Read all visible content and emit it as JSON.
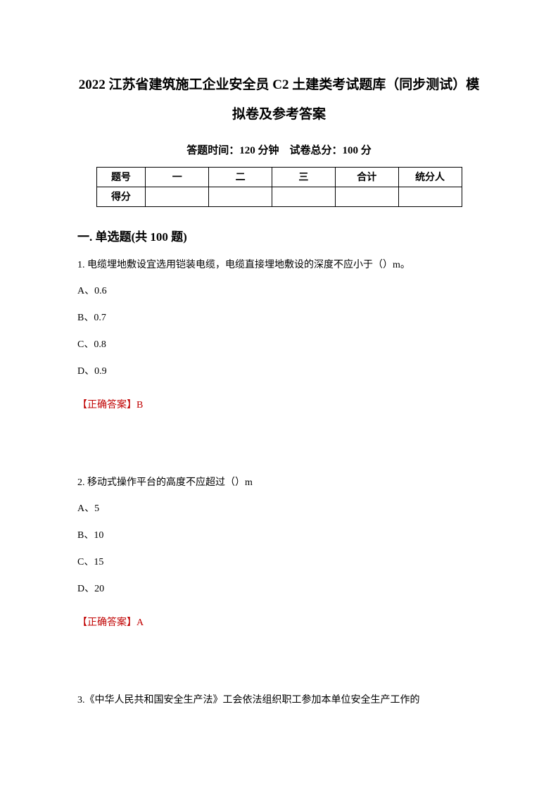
{
  "title_line1": "2022 江苏省建筑施工企业安全员 C2 土建类考试题库（同步测试）模",
  "title_line2": "拟卷及参考答案",
  "exam_info": "答题时间：120 分钟　试卷总分：100 分",
  "score_table": {
    "header_cells": [
      "题号",
      "一",
      "二",
      "三",
      "合计",
      "统分人"
    ],
    "row2_label": "得分"
  },
  "section_title": "一. 单选题(共 100 题)",
  "questions": [
    {
      "text": "1. 电缆埋地敷设宜选用铠装电缆，电缆直接埋地敷设的深度不应小于（）m。",
      "options": [
        "A、0.6",
        "B、0.7",
        "C、0.8",
        "D、0.9"
      ],
      "answer_label": "【正确答案】",
      "answer_value": "B"
    },
    {
      "text": "2. 移动式操作平台的高度不应超过（）m",
      "options": [
        "A、5",
        "B、10",
        "C、15",
        "D、20"
      ],
      "answer_label": "【正确答案】",
      "answer_value": "A"
    },
    {
      "text": "3.《中华人民共和国安全生产法》工会依法组织职工参加本单位安全生产工作的",
      "options": [],
      "answer_label": "",
      "answer_value": ""
    }
  ],
  "colors": {
    "text": "#000000",
    "answer": "#c00000",
    "background": "#ffffff",
    "border": "#000000"
  }
}
